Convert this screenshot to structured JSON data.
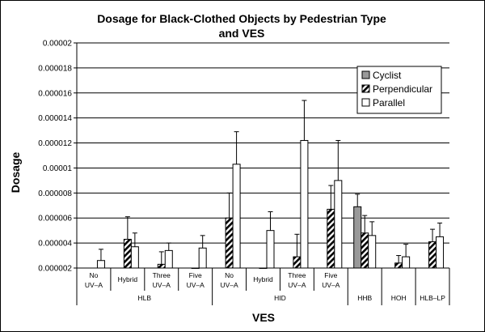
{
  "chart_data": {
    "type": "bar",
    "title_lines": [
      "Dosage for Black-Clothed Objects by Pedestrian Type",
      "and VES"
    ],
    "xlabel": "VES",
    "ylabel": "Dosage",
    "ylim": [
      2e-06,
      2e-05
    ],
    "yticks": [
      "0.000002",
      "0.000004",
      "0.000006",
      "0.000008",
      "0.00001",
      "0.000012",
      "0.000014",
      "0.000016",
      "0.000018",
      "0.00002"
    ],
    "grid": true,
    "legend_position": "top-right",
    "categories": [
      {
        "label_lines": [
          "No",
          "UV–A"
        ],
        "group": "HLB"
      },
      {
        "label_lines": [
          "Hybrid"
        ],
        "group": "HLB"
      },
      {
        "label_lines": [
          "Three",
          "UV–A"
        ],
        "group": "HLB"
      },
      {
        "label_lines": [
          "Five",
          "UV–A"
        ],
        "group": "HLB"
      },
      {
        "label_lines": [
          "No",
          "UV–A"
        ],
        "group": "HID"
      },
      {
        "label_lines": [
          "Hybrid"
        ],
        "group": "HID"
      },
      {
        "label_lines": [
          "Three",
          "UV–A"
        ],
        "group": "HID"
      },
      {
        "label_lines": [
          "Five",
          "UV–A"
        ],
        "group": "HID"
      },
      {
        "label_lines": [],
        "group": "HHB"
      },
      {
        "label_lines": [],
        "group": "HOH"
      },
      {
        "label_lines": [],
        "group": "HLB–LP"
      }
    ],
    "groups": [
      {
        "name": "HLB",
        "start": 0,
        "end": 3
      },
      {
        "name": "HID",
        "start": 4,
        "end": 7
      },
      {
        "name": "HHB",
        "start": 8,
        "end": 8
      },
      {
        "name": "HOH",
        "start": 9,
        "end": 9
      },
      {
        "name": "HLB–LP",
        "start": 10,
        "end": 10
      }
    ],
    "series": [
      {
        "name": "Cyclist",
        "fill": "#999999",
        "values": [
          null,
          null,
          null,
          null,
          null,
          null,
          null,
          null,
          6.9e-06,
          null,
          null
        ],
        "err_high": [
          null,
          null,
          null,
          null,
          null,
          null,
          null,
          null,
          7.9e-06,
          null,
          null
        ]
      },
      {
        "name": "Perpendicular",
        "fill": "hatch",
        "values": [
          null,
          4.3e-06,
          2.3e-06,
          2e-06,
          6e-06,
          2e-06,
          2.9e-06,
          6.7e-06,
          4.8e-06,
          2.4e-06,
          4.1e-06
        ],
        "err_high": [
          null,
          6.1e-06,
          3.3e-06,
          null,
          8e-06,
          null,
          4.7e-06,
          8.6e-06,
          6.2e-06,
          3e-06,
          5.1e-06
        ]
      },
      {
        "name": "Parallel",
        "fill": "#ffffff",
        "values": [
          2.6e-06,
          3.7e-06,
          3.4e-06,
          3.6e-06,
          1.03e-05,
          5e-06,
          1.22e-05,
          9e-06,
          4.6e-06,
          2.9e-06,
          4.5e-06
        ],
        "err_high": [
          3.5e-06,
          4.8e-06,
          4e-06,
          4.6e-06,
          1.29e-05,
          6.5e-06,
          1.54e-05,
          1.22e-05,
          5.7e-06,
          3.9e-06,
          5.6e-06
        ]
      }
    ]
  }
}
